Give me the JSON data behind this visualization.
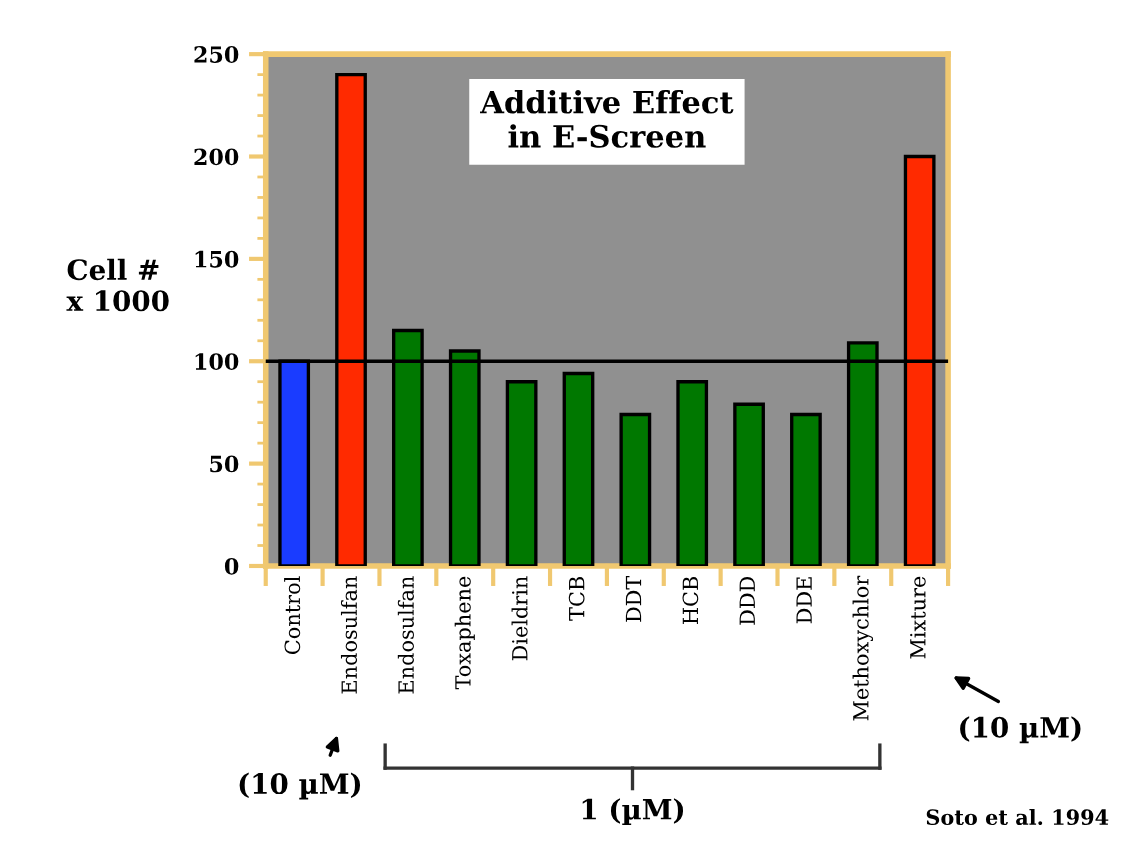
{
  "chart_data": {
    "type": "bar",
    "title": "Additive Effect\nin E-Screen",
    "ylabel": "Cell #\nx 1000",
    "categories": [
      "Control",
      "Endosulfan",
      "Endosulfan",
      "Toxaphene",
      "Dieldrin",
      "TCB",
      "DDT",
      "HCB",
      "DDD",
      "DDE",
      "Methoxychlor",
      "Mixture"
    ],
    "values": [
      100,
      240,
      115,
      105,
      90,
      94,
      74,
      90,
      79,
      74,
      109,
      200
    ],
    "colors": [
      "#1a3cff",
      "#ff2a00",
      "#007800",
      "#007800",
      "#007800",
      "#007800",
      "#007800",
      "#007800",
      "#007800",
      "#007800",
      "#007800",
      "#ff2a00"
    ],
    "ylim": [
      0,
      250
    ],
    "yticks": [
      0,
      {
        "value": 10,
        "label": null
      },
      {
        "value": 20,
        "label": null
      },
      {
        "value": 30,
        "label": null
      },
      {
        "value": 40,
        "label": null
      },
      50,
      {
        "value": 60,
        "label": null
      },
      {
        "value": 70,
        "label": null
      },
      {
        "value": 80,
        "label": null
      },
      {
        "value": 90,
        "label": null
      },
      100,
      {
        "value": 110,
        "label": null
      },
      {
        "value": 120,
        "label": null
      },
      {
        "value": 130,
        "label": null
      },
      {
        "value": 140,
        "label": null
      },
      150,
      {
        "value": 160,
        "label": null
      },
      {
        "value": 170,
        "label": null
      },
      {
        "value": 180,
        "label": null
      },
      {
        "value": 190,
        "label": null
      },
      200,
      {
        "value": 210,
        "label": null
      },
      {
        "value": 220,
        "label": null
      },
      {
        "value": 230,
        "label": null
      },
      {
        "value": 240,
        "label": null
      },
      250
    ],
    "ref_lines": [
      {
        "axis": "y",
        "value": 100,
        "color": "#000000"
      }
    ],
    "annotations": [
      "(10 µM)",
      "(10 µM)",
      "1 (µM)",
      "Soto et al. 1994"
    ],
    "grid": false,
    "legend": false
  }
}
